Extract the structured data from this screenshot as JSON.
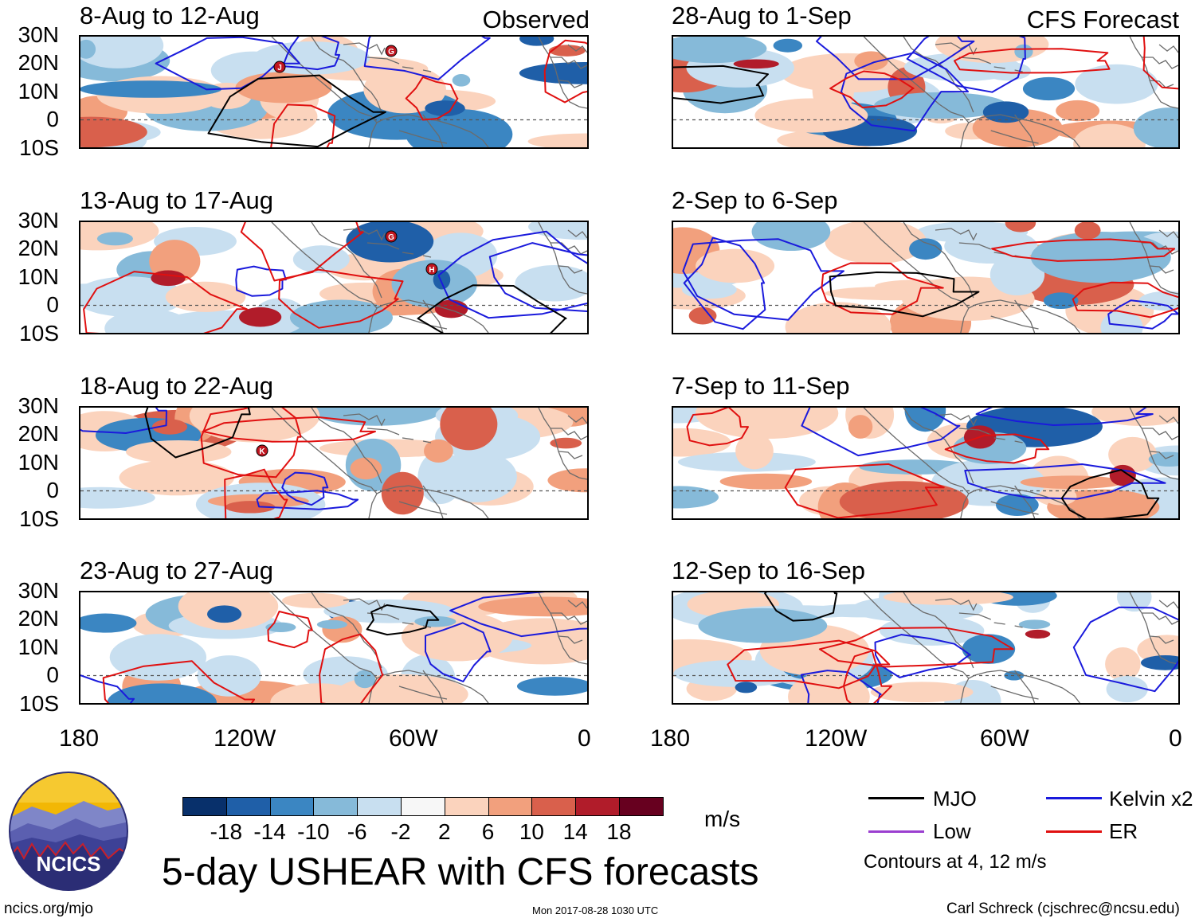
{
  "panels": [
    {
      "title": "8-Aug to 12-Aug",
      "tag": "Observed",
      "storms": [
        "J",
        "G"
      ]
    },
    {
      "title": "13-Aug to 17-Aug",
      "tag": "",
      "storms": [
        "G",
        "H"
      ]
    },
    {
      "title": "18-Aug to 22-Aug",
      "tag": "",
      "storms": [
        "K"
      ]
    },
    {
      "title": "23-Aug to 27-Aug",
      "tag": "",
      "storms": []
    },
    {
      "title": "28-Aug to 1-Sep",
      "tag": "CFS Forecast",
      "storms": []
    },
    {
      "title": "2-Sep to 6-Sep",
      "tag": "",
      "storms": []
    },
    {
      "title": "7-Sep to 11-Sep",
      "tag": "",
      "storms": []
    },
    {
      "title": "12-Sep to 16-Sep",
      "tag": "",
      "storms": []
    }
  ],
  "lat_labels": [
    "30N",
    "20N",
    "10N",
    "0",
    "10S"
  ],
  "lon_labels": [
    "180",
    "120W",
    "60W",
    "0"
  ],
  "colorbar": {
    "labels": [
      "-18",
      "-14",
      "-10",
      "-6",
      "-2",
      "2",
      "6",
      "10",
      "14",
      "18"
    ],
    "colors": [
      "#08306b",
      "#1f5fa8",
      "#3b86c2",
      "#86bad9",
      "#c8dff0",
      "#f7f7f7",
      "#fbd3bd",
      "#f2a07d",
      "#d9604c",
      "#b11c2a",
      "#67001f"
    ],
    "units": "m/s"
  },
  "legend": {
    "items": [
      {
        "label": "MJO",
        "color": "#000000"
      },
      {
        "label": "Kelvin x2",
        "color": "#1a1adc"
      },
      {
        "label": "Low",
        "color": "#9b3fd0"
      },
      {
        "label": "ER",
        "color": "#e01010"
      }
    ],
    "note": "Contours at 4, 12 m/s"
  },
  "main_title": "5-day USHEAR with CFS forecasts",
  "logo_text": "NCICS",
  "footer": {
    "url": "ncics.org/mjo",
    "timestamp": "Mon 2017-08-28 1030 UTC",
    "credit": "Carl Schreck (cjschrec@ncsu.edu)"
  }
}
